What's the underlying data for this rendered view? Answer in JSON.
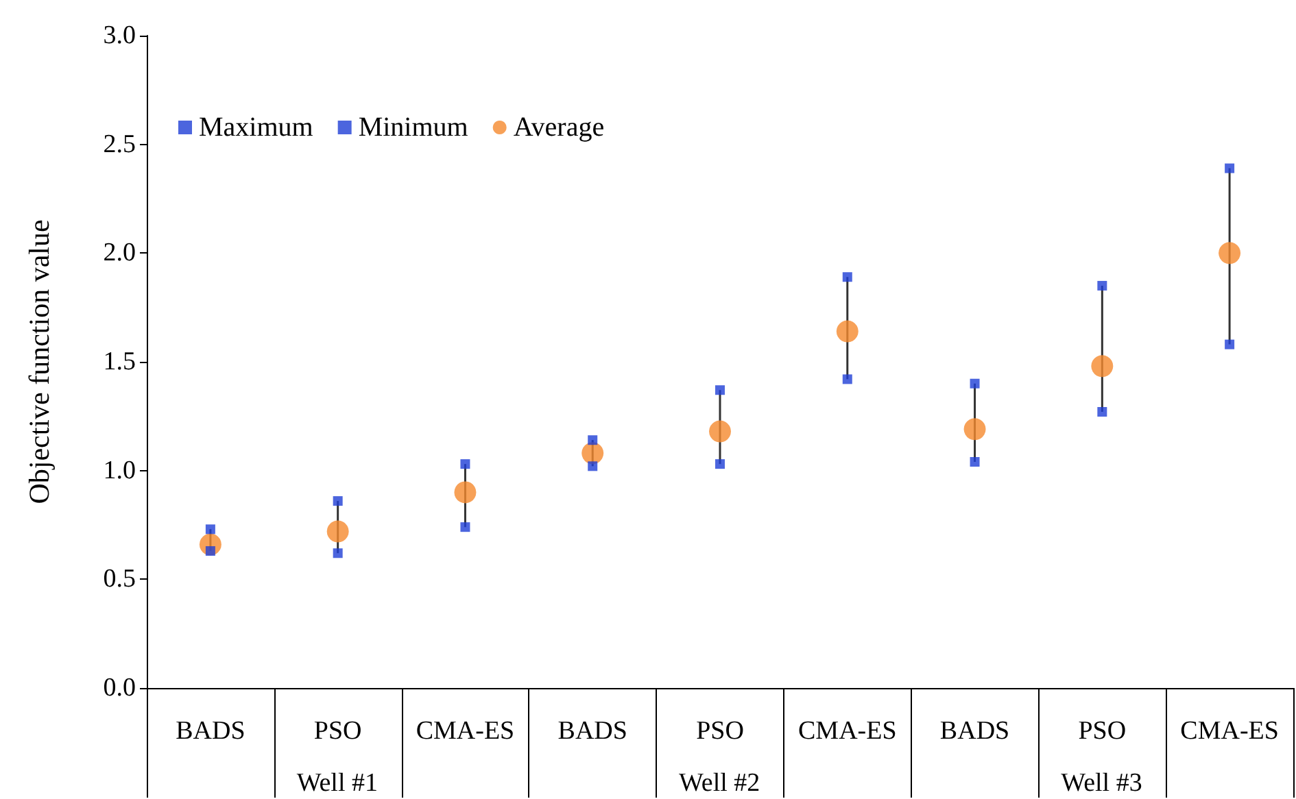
{
  "chart_data": {
    "type": "scatter",
    "ylabel": "Objective function value",
    "categories": [
      "BADS",
      "PSO",
      "CMA-ES",
      "BADS",
      "PSO",
      "CMA-ES",
      "BADS",
      "PSO",
      "CMA-ES"
    ],
    "series": [
      {
        "name": "Maximum",
        "color": "#1f3fd6",
        "marker": "square",
        "values": [
          0.73,
          0.86,
          1.03,
          1.14,
          1.37,
          1.89,
          1.4,
          1.85,
          2.39
        ]
      },
      {
        "name": "Minimum",
        "color": "#1f3fd6",
        "marker": "square",
        "values": [
          0.63,
          0.62,
          0.74,
          1.02,
          1.03,
          1.42,
          1.04,
          1.27,
          1.58
        ]
      },
      {
        "name": "Average",
        "color": "#f58a2e",
        "marker": "circle",
        "values": [
          0.66,
          0.72,
          0.9,
          1.08,
          1.18,
          1.64,
          1.19,
          1.48,
          2.0
        ]
      }
    ],
    "ylim": [
      0,
      3
    ],
    "yticks": [
      {
        "value": 0,
        "label": "0.0"
      },
      0.5,
      {
        "value": 1,
        "label": "1.0"
      },
      1.5,
      {
        "value": 2,
        "label": "2.0"
      },
      2.5,
      {
        "value": 3,
        "label": "3.0"
      }
    ],
    "grid": false,
    "legend": "top left",
    "annotations": [
      "Well #1",
      "Well #2",
      "Well #3"
    ]
  }
}
